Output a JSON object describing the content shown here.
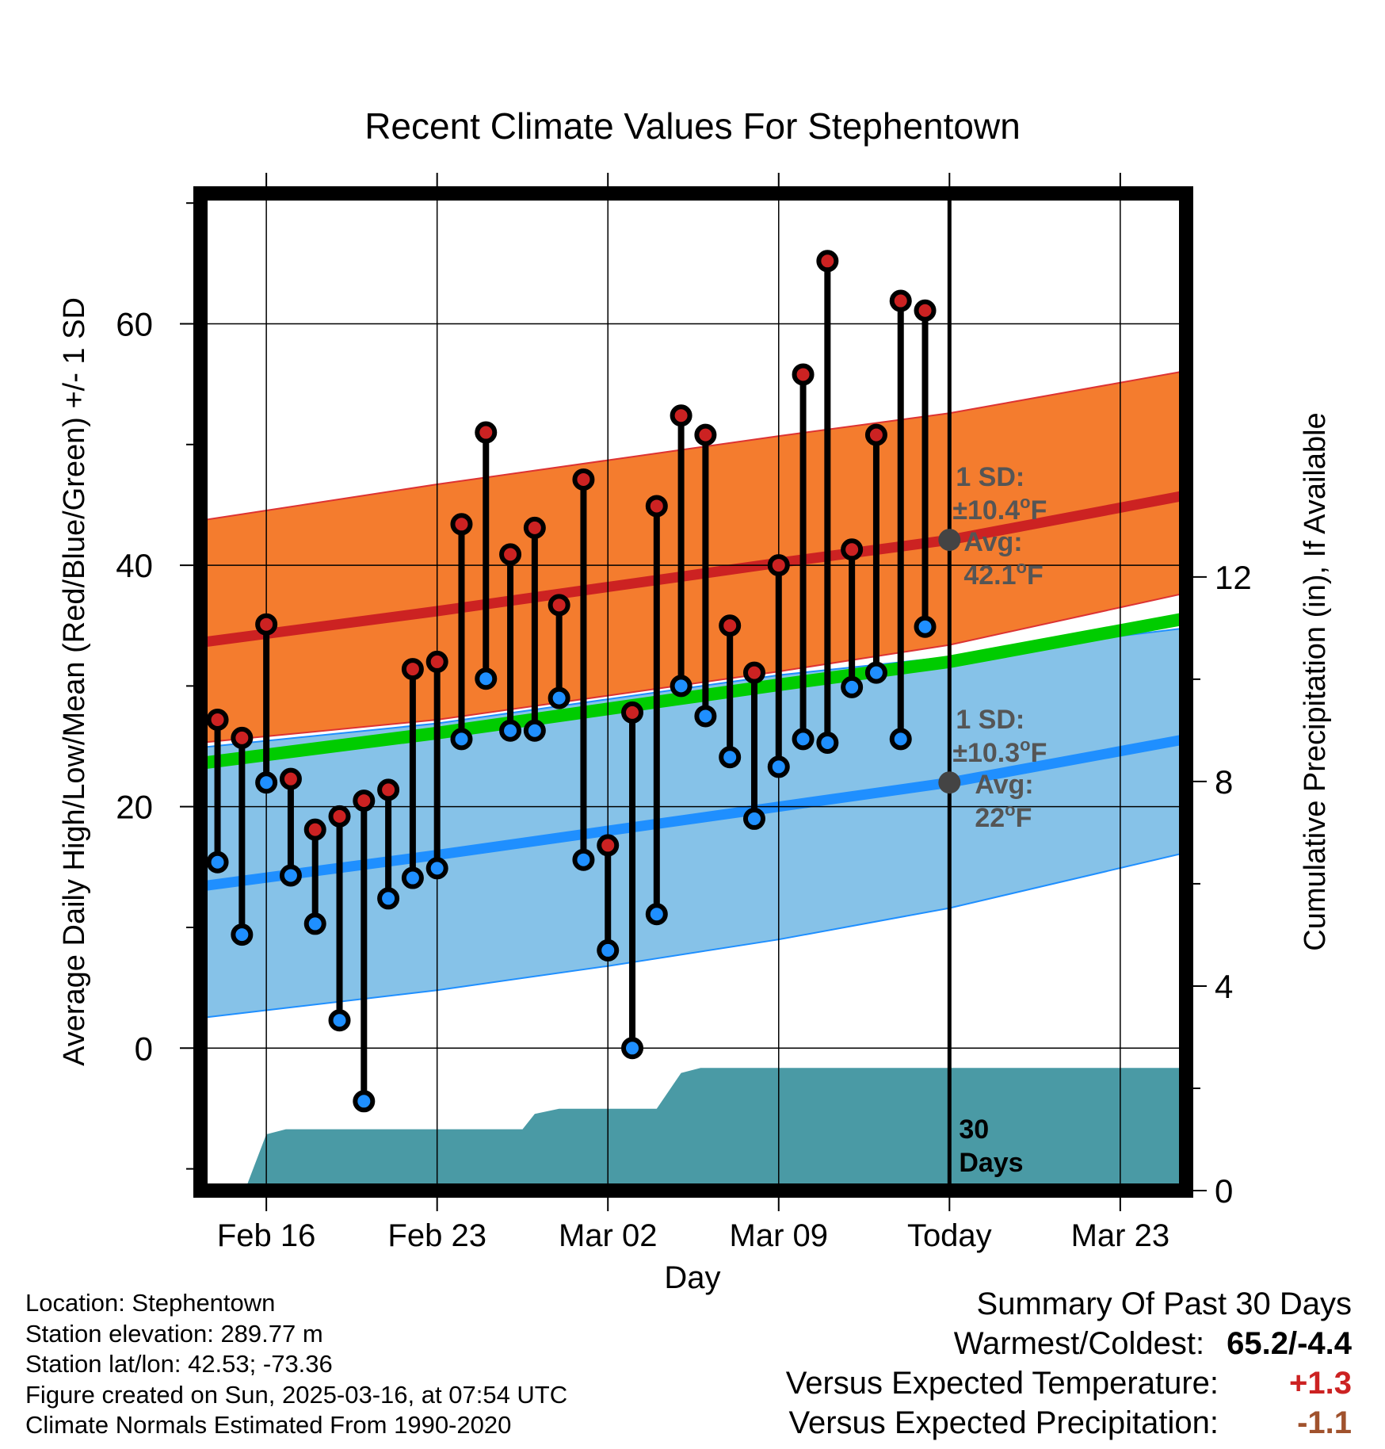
{
  "chart_data": {
    "type": "line",
    "title": "Recent Climate Values For Stephentown",
    "xlabel": "Day",
    "ylabel": "Average Daily High/Low/Mean (Red/Blue/Green) +/- 1 SD",
    "ylabel_right": "Cumulative Precipitation (in), If Available",
    "x_tick_labels": [
      "Feb 16",
      "Feb 23",
      "Mar 02",
      "Mar 09",
      "Today",
      "Mar 23"
    ],
    "x_tick_days": [
      0,
      7,
      14,
      21,
      28,
      35
    ],
    "x_range_days": [
      -2.7,
      37.7
    ],
    "y_ticks": [
      0,
      20,
      40,
      60
    ],
    "ylim": [
      -11.8,
      70.8
    ],
    "y2_ticks": [
      0,
      4,
      8,
      12
    ],
    "y2lim": [
      0,
      19.5
    ],
    "grid": true,
    "today_day": 28,
    "days": [
      -2,
      -1,
      0,
      1,
      2,
      3,
      4,
      5,
      6,
      7,
      8,
      9,
      10,
      11,
      12,
      13,
      14,
      15,
      16,
      17,
      18,
      19,
      20,
      21,
      22,
      23,
      24,
      25,
      26,
      27
    ],
    "series": [
      {
        "name": "High",
        "color": "#cc2222",
        "values": [
          27.2,
          25.7,
          35.1,
          22.3,
          18.1,
          19.2,
          20.5,
          21.4,
          31.4,
          32.0,
          43.4,
          51.0,
          40.9,
          43.1,
          36.7,
          47.1,
          16.8,
          27.8,
          44.9,
          52.4,
          50.8,
          35.0,
          31.1,
          40.0,
          55.8,
          65.2,
          41.3,
          50.8,
          61.9,
          61.1
        ]
      },
      {
        "name": "Low",
        "color": "#1f8fff",
        "values": [
          15.4,
          9.4,
          22.0,
          14.3,
          10.3,
          2.3,
          -4.4,
          12.4,
          14.1,
          14.9,
          25.6,
          30.6,
          26.3,
          26.3,
          29.0,
          15.6,
          8.1,
          0.0,
          11.1,
          30.0,
          27.5,
          24.1,
          19.0,
          23.3,
          25.6,
          25.3,
          29.9,
          31.1,
          25.6,
          34.9
        ]
      }
    ],
    "normals": {
      "days": [
        -2.7,
        7,
        14,
        21,
        28,
        37.7
      ],
      "high_avg": [
        33.6,
        36.2,
        38.2,
        40.2,
        42.1,
        45.8
      ],
      "high_upper": [
        43.7,
        46.7,
        48.7,
        50.7,
        52.6,
        56.1
      ],
      "high_lower": [
        25.3,
        27.2,
        29.2,
        31.2,
        33.4,
        37.7
      ],
      "low_avg": [
        13.4,
        16.0,
        18.0,
        20.0,
        22.0,
        25.6
      ],
      "low_upper": [
        24.9,
        26.9,
        28.9,
        30.9,
        32.4,
        34.8
      ],
      "low_lower": [
        2.5,
        4.8,
        6.8,
        9.0,
        11.6,
        16.2
      ],
      "mean_avg": [
        23.6,
        26.1,
        28.1,
        30.1,
        32.0,
        35.6
      ],
      "colors": {
        "high_band": "#f47c2e",
        "high_line": "#cc2222",
        "low_band": "#86c2e8",
        "low_line": "#1f8fff",
        "mean_line": "#00cc00"
      }
    },
    "precipitation": {
      "color": "#4a9aa5",
      "days": [
        -2.7,
        -1.0,
        -0.8,
        0.0,
        0.8,
        10.5,
        11.0,
        12.0,
        16.0,
        17.0,
        17.8,
        20.0,
        37.7
      ],
      "values": [
        0,
        0,
        0.1,
        1.1,
        1.2,
        1.2,
        1.5,
        1.6,
        1.6,
        2.3,
        2.4,
        2.4,
        2.4
      ]
    },
    "annotations": {
      "high_sd": "1 SD:",
      "high_sd_value": "±10.4",
      "high_avg_label": "Avg:",
      "high_avg_value": "42.1",
      "low_sd": "1 SD:",
      "low_sd_value": "±10.3",
      "low_avg_label": "Avg:",
      "low_avg_value": "22",
      "degree_unit": "o",
      "unit_f": "F",
      "period_number": "30",
      "period_word": "Days",
      "text_color": "#555555"
    }
  },
  "footer": {
    "location": "Location: Stephentown",
    "elevation": "Station elevation: 289.77 m",
    "latlon": "Station lat/lon: 42.53; -73.36",
    "created": "Figure created on Sun, 2025-03-16, at 07:54 UTC",
    "normals": "Climate Normals Estimated From 1990-2020"
  },
  "summary": {
    "title": "Summary Of Past 30 Days",
    "warmest_label": "Warmest/Coldest:",
    "warmest_value": "65.2/-4.4",
    "temp_label": "Versus Expected Temperature:",
    "temp_value": "+1.3",
    "temp_color": "#cc2222",
    "precip_label": "Versus Expected Precipitation:",
    "precip_value": "-1.1",
    "precip_color": "#a0522d"
  }
}
